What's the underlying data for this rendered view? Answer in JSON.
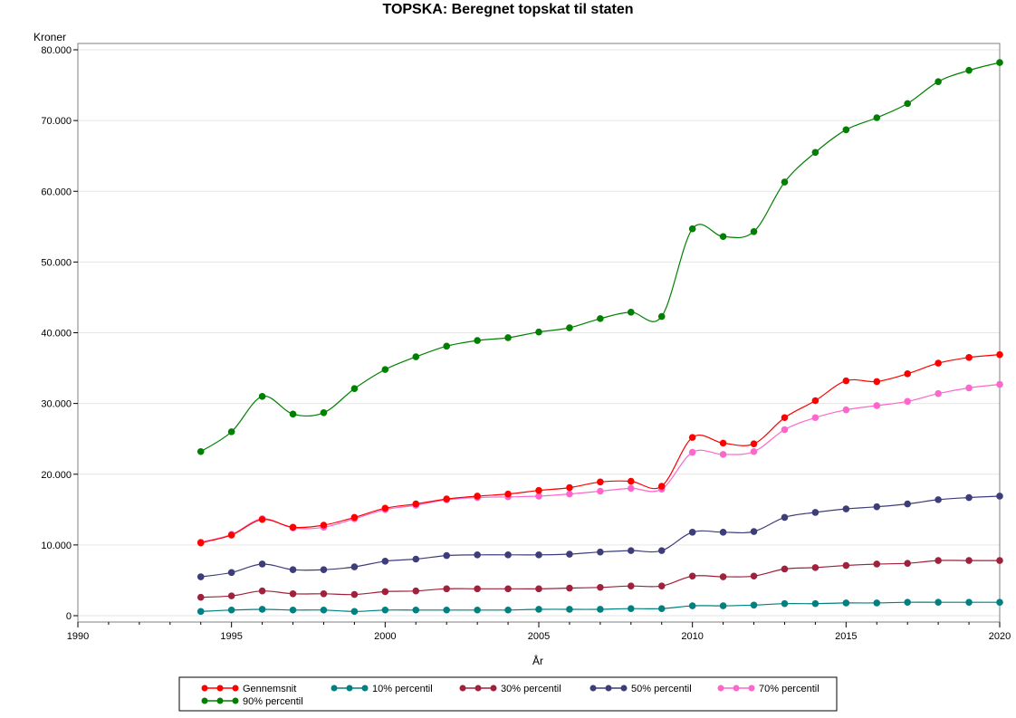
{
  "chart_data": {
    "type": "line",
    "title": "TOPSKA:  Beregnet topskat til staten",
    "ylabel": "Kroner",
    "xlabel": "År",
    "xlim": [
      1990,
      2020
    ],
    "ylim": [
      0,
      80000
    ],
    "x_ticks": [
      1990,
      1995,
      2000,
      2005,
      2010,
      2015,
      2020
    ],
    "x_tick_labels": [
      "1990",
      "1995",
      "2000",
      "2005",
      "2010",
      "2015",
      "2020"
    ],
    "y_ticks": [
      0,
      10000,
      20000,
      30000,
      40000,
      50000,
      60000,
      70000,
      80000
    ],
    "y_tick_labels": [
      "0",
      "10.000",
      "20.000",
      "30.000",
      "40.000",
      "50.000",
      "60.000",
      "70.000",
      "80.000"
    ],
    "grid": true,
    "legend_position": "bottom",
    "x": [
      1994,
      1995,
      1996,
      1997,
      1998,
      1999,
      2000,
      2001,
      2002,
      2003,
      2004,
      2005,
      2006,
      2007,
      2008,
      2009,
      2010,
      2011,
      2012,
      2013,
      2014,
      2015,
      2016,
      2017,
      2018,
      2019,
      2020
    ],
    "series": [
      {
        "name": "Gennemsnit",
        "color": "#ff0000",
        "values": [
          10300,
          11400,
          13600,
          12500,
          12800,
          13900,
          15200,
          15800,
          16500,
          16900,
          17200,
          17700,
          18100,
          18900,
          19000,
          18300,
          25200,
          24400,
          24300,
          28000,
          30400,
          33200,
          33100,
          34200,
          35700,
          36500,
          36900
        ]
      },
      {
        "name": "10% percentil",
        "color": "#008080",
        "values": [
          600,
          800,
          900,
          800,
          800,
          600,
          800,
          800,
          800,
          800,
          800,
          900,
          900,
          900,
          1000,
          1000,
          1400,
          1400,
          1500,
          1700,
          1700,
          1800,
          1800,
          1900,
          1900,
          1900,
          1900
        ]
      },
      {
        "name": "30% percentil",
        "color": "#a0213c",
        "values": [
          2600,
          2800,
          3500,
          3100,
          3100,
          3000,
          3400,
          3500,
          3800,
          3800,
          3800,
          3800,
          3900,
          4000,
          4200,
          4200,
          5600,
          5500,
          5600,
          6600,
          6800,
          7100,
          7300,
          7400,
          7800,
          7800,
          7800
        ]
      },
      {
        "name": "50% percentil",
        "color": "#3d3d7a",
        "values": [
          5500,
          6100,
          7300,
          6500,
          6500,
          6900,
          7700,
          8000,
          8500,
          8600,
          8600,
          8600,
          8700,
          9000,
          9200,
          9200,
          11800,
          11800,
          11900,
          13900,
          14600,
          15100,
          15400,
          15800,
          16400,
          16700,
          16900
        ]
      },
      {
        "name": "70% percentil",
        "color": "#ff66cc",
        "values": [
          10400,
          11500,
          13700,
          12400,
          12500,
          13700,
          15000,
          15600,
          16400,
          16700,
          16800,
          16900,
          17200,
          17600,
          18000,
          17900,
          23100,
          22800,
          23200,
          26300,
          28000,
          29100,
          29700,
          30300,
          31400,
          32200,
          32700
        ]
      },
      {
        "name": "90% percentil",
        "color": "#008000",
        "values": [
          23200,
          26000,
          31000,
          28500,
          28700,
          32100,
          34800,
          36600,
          38100,
          38900,
          39300,
          40100,
          40700,
          42000,
          42900,
          42300,
          54700,
          53600,
          54300,
          61300,
          65500,
          68700,
          70400,
          72400,
          75500,
          77100,
          78200
        ]
      }
    ]
  }
}
